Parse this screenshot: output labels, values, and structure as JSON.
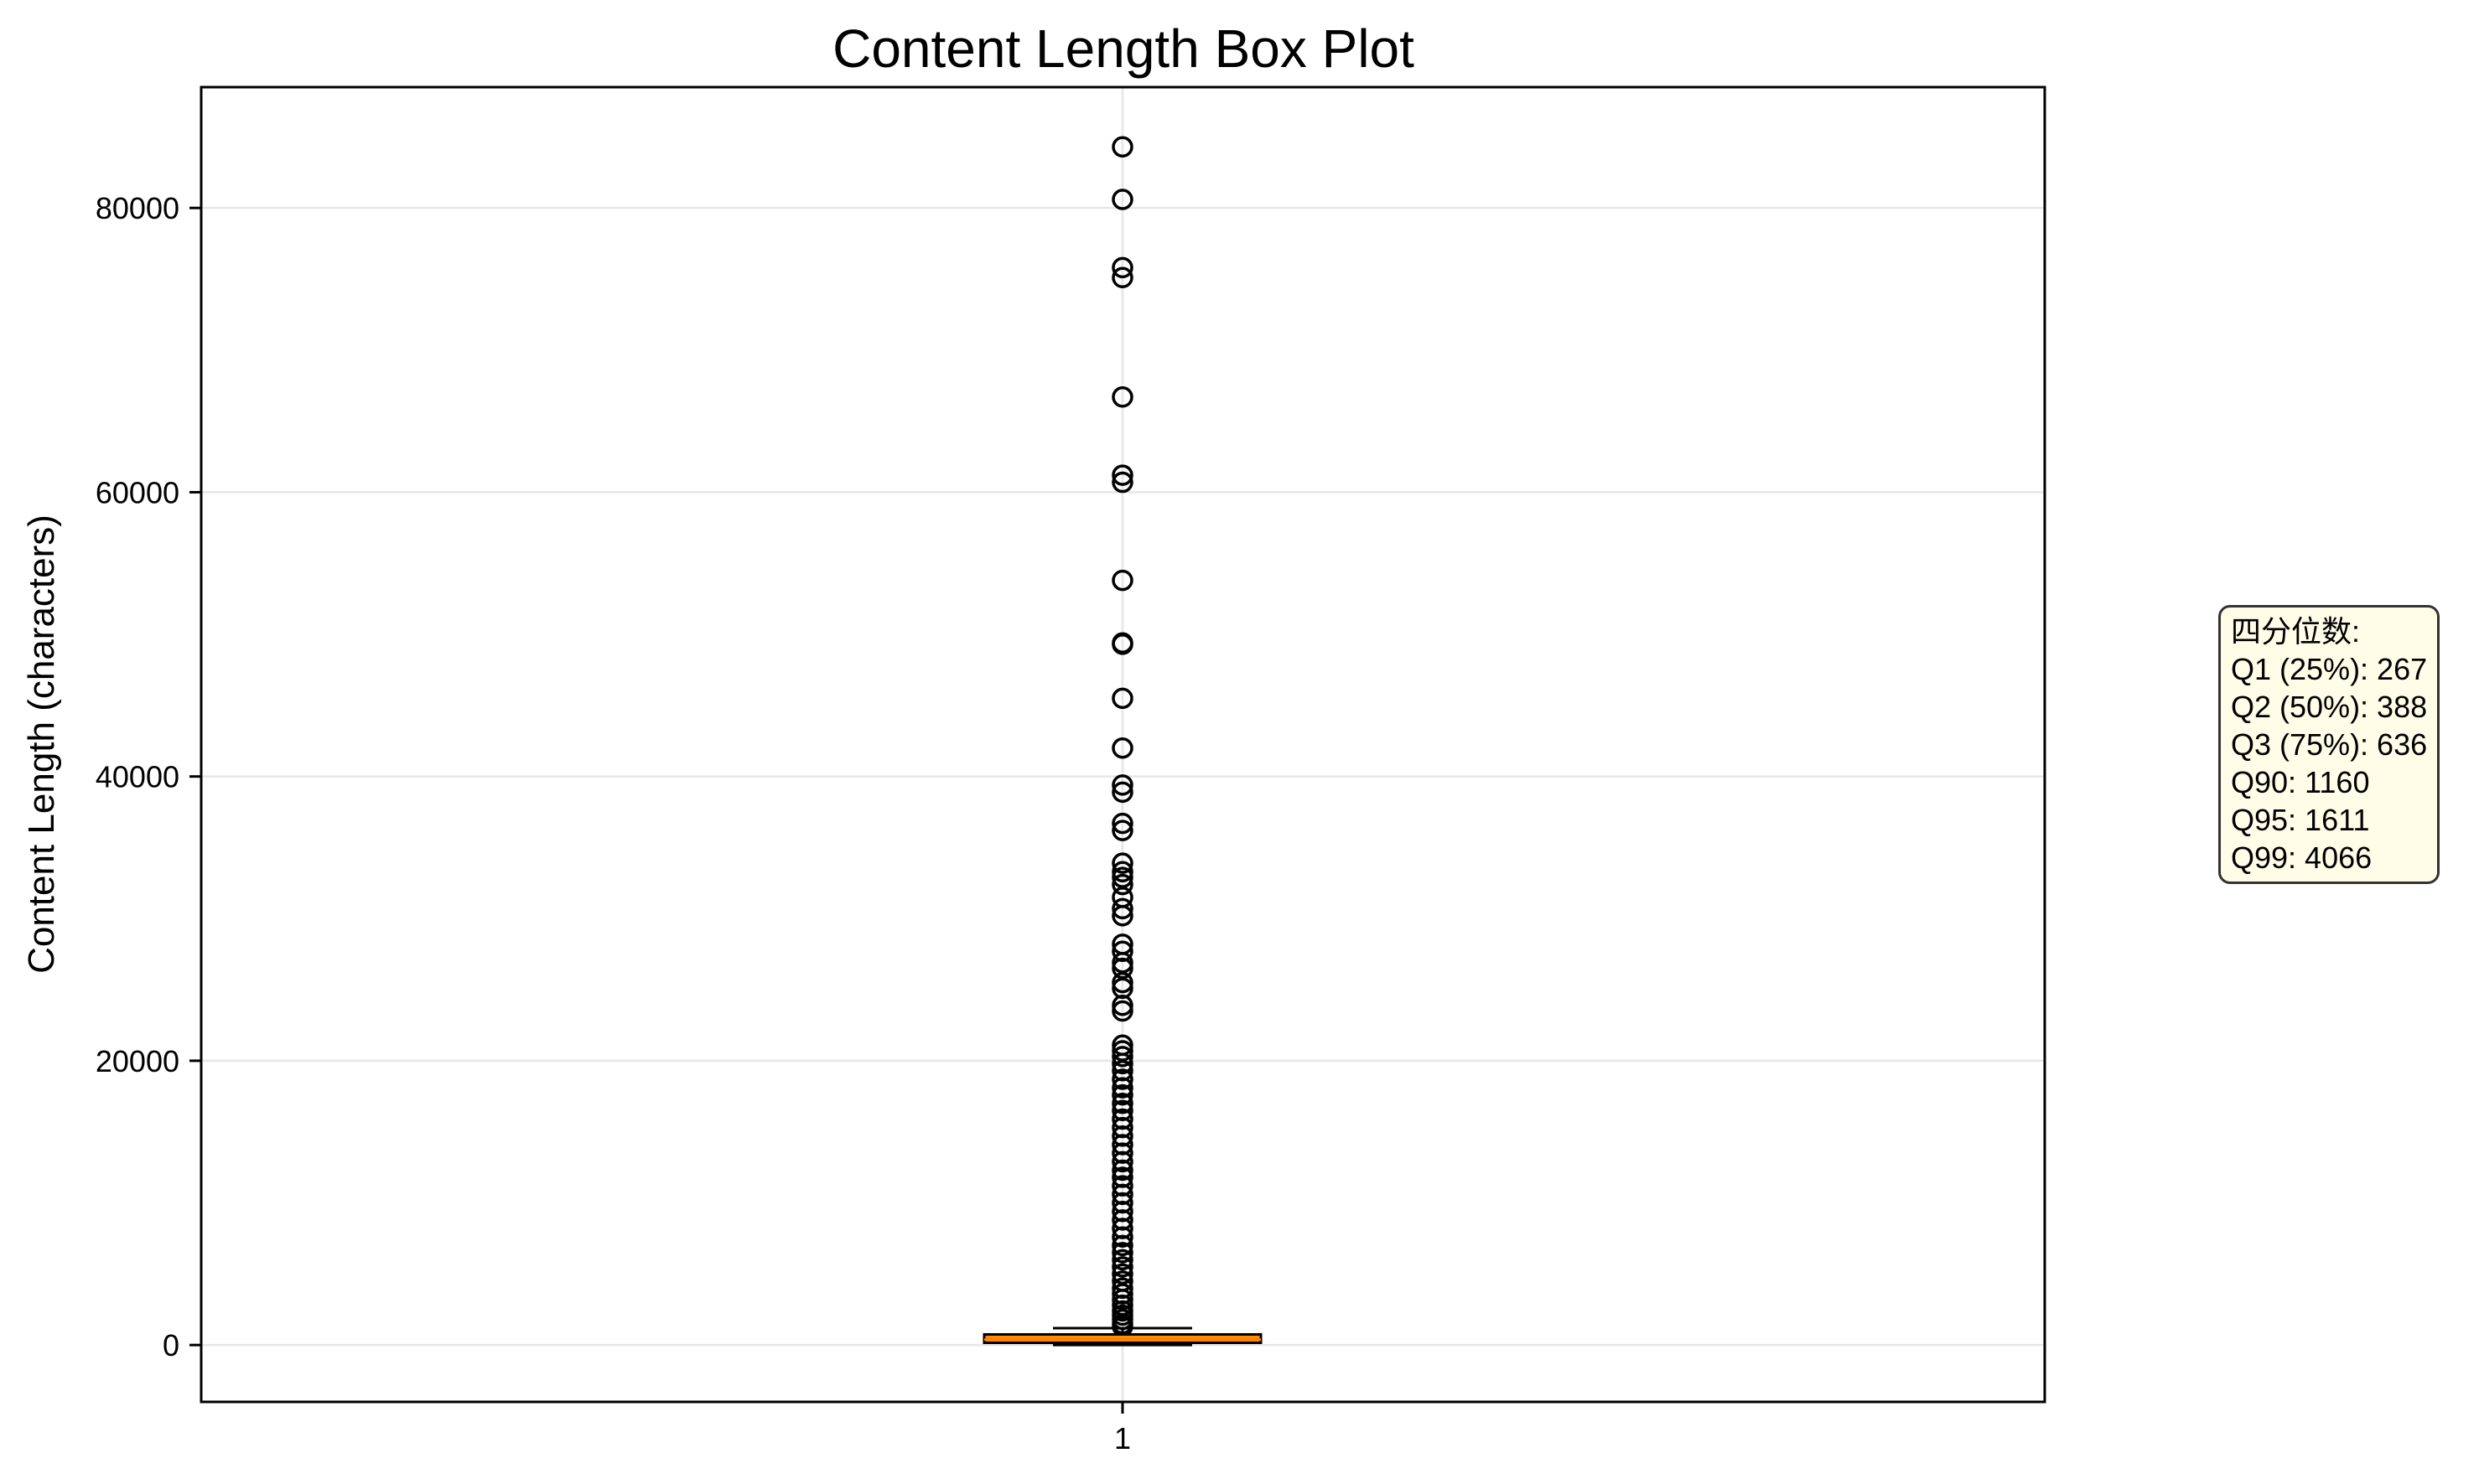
{
  "chart_data": {
    "type": "box",
    "title": "Content Length Box Plot",
    "ylabel": "Content Length (characters)",
    "xlabel": "",
    "categories": [
      "1"
    ],
    "ylim": [
      -4000,
      88500
    ],
    "yticks": [
      0,
      20000,
      40000,
      60000,
      80000
    ],
    "ytick_labels": [
      "0",
      "20000",
      "40000",
      "60000",
      "80000"
    ],
    "grid": true,
    "box": {
      "q1": 267,
      "median": 388,
      "q3": 636,
      "whisker_low": 1,
      "whisker_high": 1189,
      "outliers": [
        84300,
        80600,
        75800,
        75100,
        66700,
        61200,
        60700,
        53800,
        49400,
        49300,
        45500,
        42000,
        39400,
        38900,
        36700,
        36200,
        33900,
        33300,
        32900,
        32400,
        31500,
        30700,
        30200,
        28200,
        27700,
        26900,
        26500,
        25500,
        25100,
        23900,
        23500,
        21100,
        20700,
        20300,
        19800,
        19300,
        18700,
        18100,
        17600,
        17000,
        16500,
        15900,
        15300,
        14700,
        14100,
        13500,
        12900,
        12300,
        11800,
        11200,
        10600,
        10000,
        9400,
        8800,
        8200,
        7600,
        7000,
        6500,
        6000,
        5500,
        5000,
        4500,
        4000,
        3600,
        3200,
        2800,
        2400,
        2100,
        1800,
        1500,
        1300
      ]
    },
    "colors": {
      "box_fill": "#ff8c00",
      "median": "#ff7f0e",
      "annotation_bg": "#fffde7"
    }
  },
  "annotation": {
    "heading": "四分位数:",
    "lines": [
      "Q1 (25%): 267",
      "Q2 (50%): 388",
      "Q3 (75%): 636",
      "Q90: 1160",
      "Q95: 1611",
      "Q99: 4066"
    ]
  }
}
